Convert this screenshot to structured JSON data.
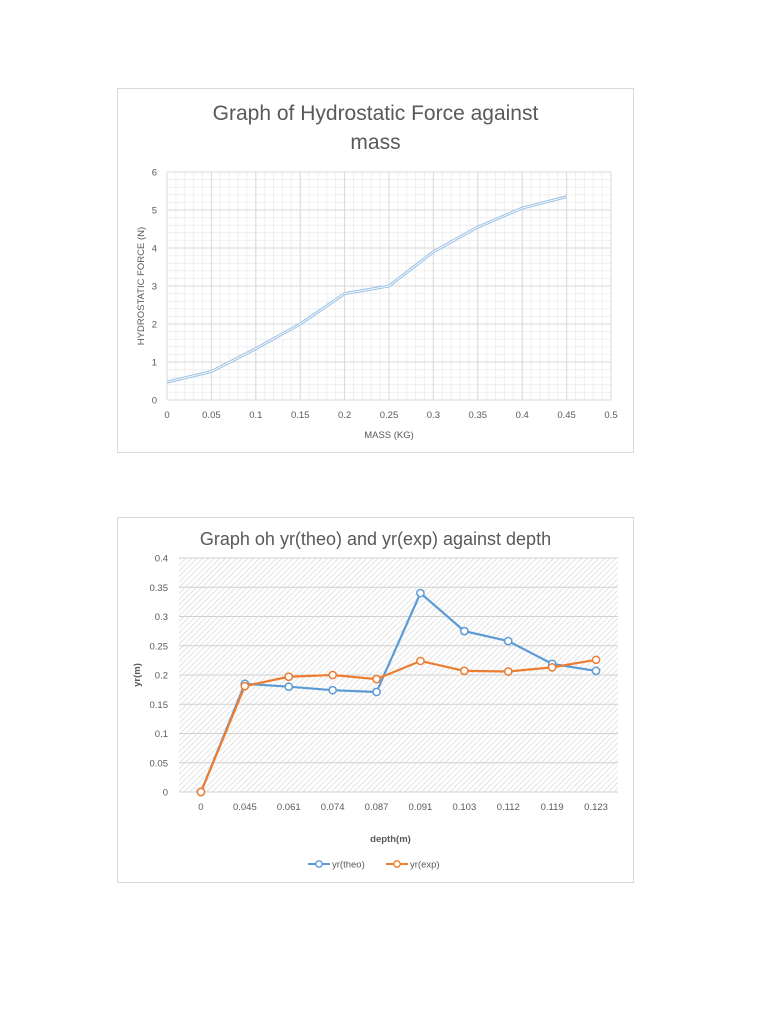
{
  "chart_data": [
    {
      "type": "line",
      "title": "Graph of Hydrostatic Force against mass",
      "title_lines": [
        "Graph of Hydrostatic Force against",
        "mass"
      ],
      "xlabel": "MASS (KG)",
      "ylabel": "HYDROSTATIC FORCE (N)",
      "xlim": [
        0,
        0.5
      ],
      "ylim": [
        0,
        6
      ],
      "x_ticks": [
        "0",
        "0.05",
        "0.1",
        "0.15",
        "0.2",
        "0.25",
        "0.3",
        "0.35",
        "0.4",
        "0.45",
        "0.5"
      ],
      "y_ticks": [
        "0",
        "1",
        "2",
        "3",
        "4",
        "5",
        "6"
      ],
      "grid": "major and minor",
      "legend": "none",
      "series": [
        {
          "name": "Hydrostatic Force",
          "color": "#9dc3e6",
          "x": [
            0,
            0.05,
            0.1,
            0.15,
            0.2,
            0.25,
            0.3,
            0.35,
            0.4,
            0.45
          ],
          "values": [
            0.47,
            0.75,
            1.35,
            2.0,
            2.8,
            3.0,
            3.9,
            4.55,
            5.05,
            5.35
          ]
        }
      ]
    },
    {
      "type": "line",
      "title": "Graph oh yr(theo) and yr(exp) against depth",
      "xlabel": "depth(m)",
      "ylabel": "yr(m)",
      "ylim": [
        0,
        0.4
      ],
      "categories": [
        "0",
        "0.045",
        "0.061",
        "0.074",
        "0.087",
        "0.091",
        "0.103",
        "0.112",
        "0.119",
        "0.123"
      ],
      "y_ticks": [
        "0",
        "0.05",
        "0.1",
        "0.15",
        "0.2",
        "0.25",
        "0.3",
        "0.35",
        "0.4"
      ],
      "grid": "horizontal, hatched plot area",
      "legend_position": "bottom",
      "series": [
        {
          "name": "yr(theo)",
          "color": "#5b9bd5",
          "values": [
            0,
            0.185,
            0.18,
            0.174,
            0.171,
            0.34,
            0.275,
            0.258,
            0.219,
            0.207
          ]
        },
        {
          "name": "yr(exp)",
          "color": "#ed7d31",
          "values": [
            0,
            0.181,
            0.197,
            0.2,
            0.193,
            0.224,
            0.207,
            0.206,
            0.213,
            0.226
          ]
        }
      ]
    }
  ]
}
